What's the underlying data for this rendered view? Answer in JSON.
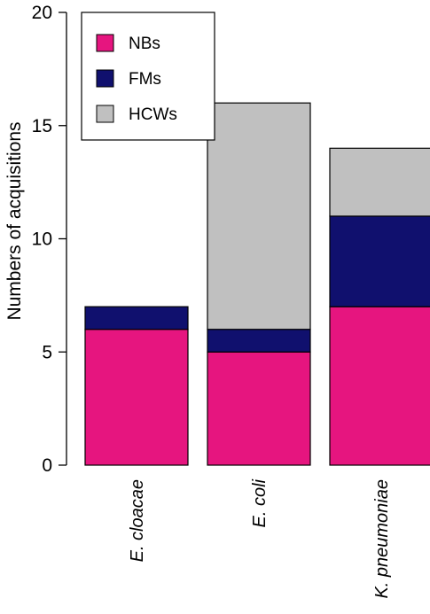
{
  "chart_data": {
    "type": "bar",
    "stacked": true,
    "ylabel": "Numbers of acquisitions",
    "ylim": [
      0,
      20
    ],
    "yticks": [
      "0",
      "5",
      "10",
      "15",
      "20"
    ],
    "categories": [
      "E. cloacae",
      "E. coli",
      "K. pneumoniae"
    ],
    "series": [
      {
        "name": "NBs",
        "color": "#e6157f",
        "values": [
          6,
          5,
          7
        ]
      },
      {
        "name": "FMs",
        "color": "#10106e",
        "values": [
          1,
          1,
          4
        ]
      },
      {
        "name": "HCWs",
        "color": "#c0c0c0",
        "values": [
          0,
          10,
          3
        ]
      }
    ],
    "legend_position": "top-left",
    "grid": false
  }
}
